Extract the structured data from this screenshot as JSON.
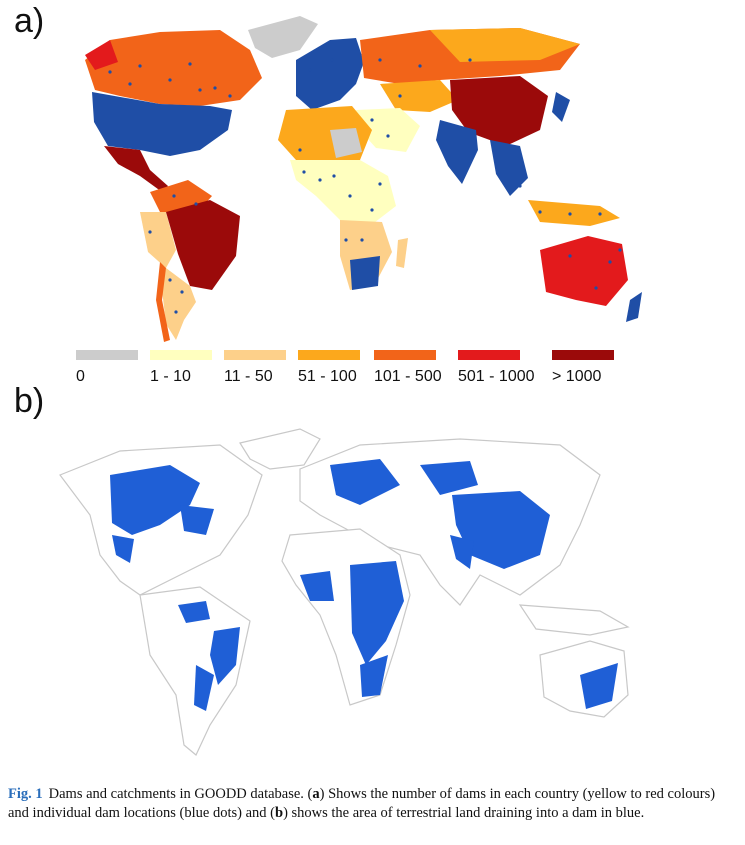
{
  "panels": {
    "a": {
      "label": "a)"
    },
    "b": {
      "label": "b)"
    }
  },
  "legend": [
    {
      "label": "0",
      "color": "#cccccc"
    },
    {
      "label": "1 - 10",
      "color": "#ffffbf"
    },
    {
      "label": "11 - 50",
      "color": "#fdd08a"
    },
    {
      "label": "51 - 100",
      "color": "#fca81c"
    },
    {
      "label": "101 - 500",
      "color": "#f26419"
    },
    {
      "label": "501 - 1000",
      "color": "#e31a1c"
    },
    {
      "label": "> 1000",
      "color": "#9b0a0a"
    }
  ],
  "colors": {
    "dam_dots": "#1f4ea6",
    "catchment": "#1f5fd6",
    "land_outline": "#c8c8c8",
    "figure_number": "#2a6ebb"
  },
  "caption": {
    "fig_number": "Fig. 1",
    "part1": "Dams and catchments in GOODD database. (",
    "a": "a",
    "part2": ") Shows the number of dams in each country (yellow to red colours) and individual dam locations (blue dots) and (",
    "b": "b",
    "part3": ") shows the area of terrestrial land draining into a dam in blue."
  }
}
